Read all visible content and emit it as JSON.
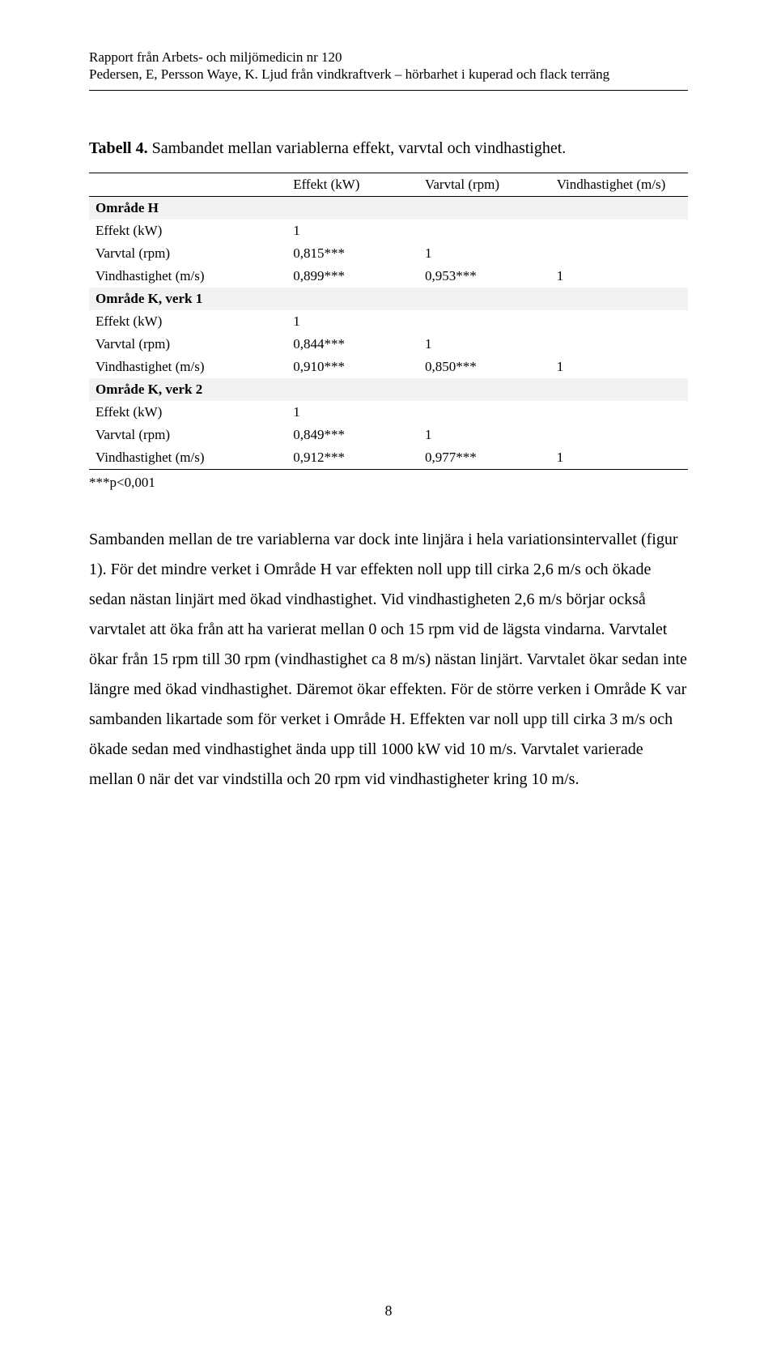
{
  "header": {
    "line1": "Rapport från Arbets- och miljömedicin nr 120",
    "line2": "Pedersen, E, Persson Waye, K. Ljud från vindkraftverk – hörbarhet i kuperad och flack terräng"
  },
  "caption": {
    "label": "Tabell 4.",
    "text": "Sambandet mellan variablerna effekt, varvtal och vindhastighet."
  },
  "table": {
    "columns": [
      "",
      "Effekt (kW)",
      "Varvtal (rpm)",
      "Vindhastighet (m/s)"
    ],
    "groups": [
      {
        "title": "Område H",
        "rows": [
          {
            "label": "Effekt (kW)",
            "a": "1",
            "b": "",
            "c": ""
          },
          {
            "label": "Varvtal (rpm)",
            "a": "0,815***",
            "b": "1",
            "c": ""
          },
          {
            "label": "Vindhastighet (m/s)",
            "a": "0,899***",
            "b": "0,953***",
            "c": "1"
          }
        ]
      },
      {
        "title": "Område K, verk 1",
        "rows": [
          {
            "label": "Effekt (kW)",
            "a": "1",
            "b": "",
            "c": ""
          },
          {
            "label": "Varvtal (rpm)",
            "a": "0,844***",
            "b": "1",
            "c": ""
          },
          {
            "label": "Vindhastighet (m/s)",
            "a": "0,910***",
            "b": "0,850***",
            "c": "1"
          }
        ]
      },
      {
        "title": "Område K, verk 2",
        "rows": [
          {
            "label": "Effekt (kW)",
            "a": "1",
            "b": "",
            "c": ""
          },
          {
            "label": "Varvtal (rpm)",
            "a": "0,849***",
            "b": "1",
            "c": ""
          },
          {
            "label": "Vindhastighet (m/s)",
            "a": "0,912***",
            "b": "0,977***",
            "c": "1"
          }
        ]
      }
    ],
    "note": "***p<0,001"
  },
  "body": "Sambanden mellan de tre variablerna var dock inte linjära i hela variationsintervallet (figur 1). För det mindre verket i Område H var effekten noll upp till cirka 2,6 m/s och ökade sedan nästan linjärt med ökad vindhastighet. Vid vindhastigheten 2,6 m/s börjar också varvtalet att öka från att ha varierat mellan 0 och 15 rpm vid de lägsta vindarna. Varvtalet ökar från 15 rpm till 30 rpm (vindhastighet ca 8 m/s) nästan linjärt. Varvtalet ökar sedan inte längre med ökad vindhastighet. Däremot ökar effekten. För de större verken i Område K var sambanden likartade som för verket i Område H. Effekten var noll upp till cirka 3 m/s och ökade sedan med vindhastighet ända upp till 1000 kW vid 10 m/s. Varvtalet varierade mellan 0 när det var vindstilla och 20 rpm vid vindhastigheter kring 10 m/s.",
  "page_number": "8"
}
